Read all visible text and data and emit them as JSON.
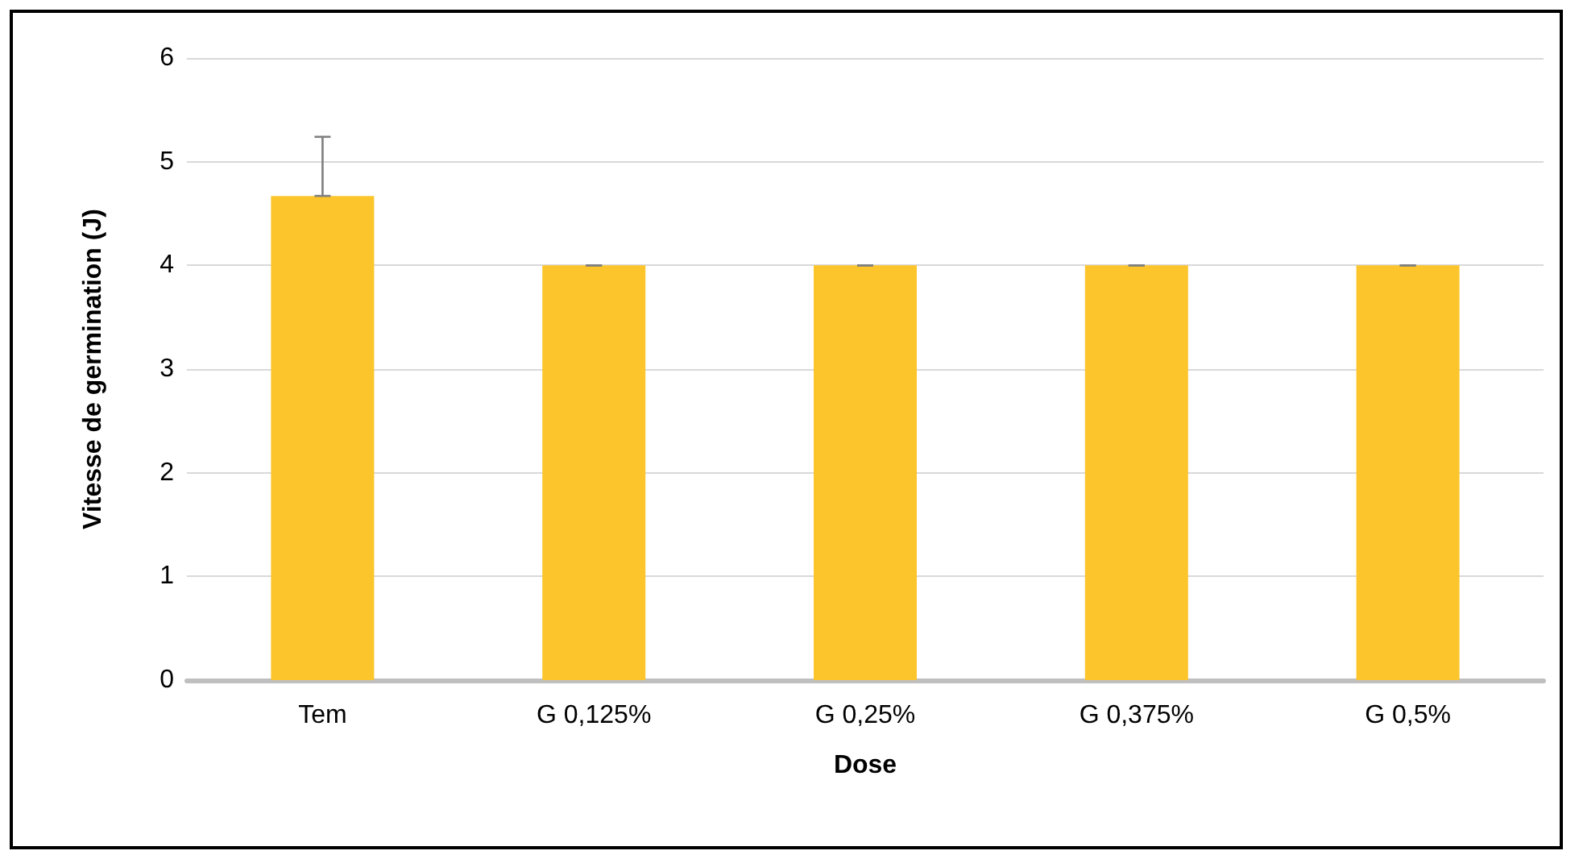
{
  "chart_data": {
    "type": "bar",
    "xlabel": "Dose",
    "ylabel": "Vitesse de germination (J)",
    "categories": [
      "Tem",
      "G 0,125%",
      "G 0,25%",
      "G 0,375%",
      "G 0,5%"
    ],
    "values": [
      4.67,
      4,
      4,
      4,
      4
    ],
    "errors": [
      [
        4.67,
        5.24
      ],
      0,
      0,
      0,
      0
    ],
    "color": "#fcc52c",
    "ylim": [
      0,
      6
    ],
    "yticks": [
      0,
      1,
      2,
      3,
      4,
      5,
      6
    ],
    "grid": "y"
  }
}
